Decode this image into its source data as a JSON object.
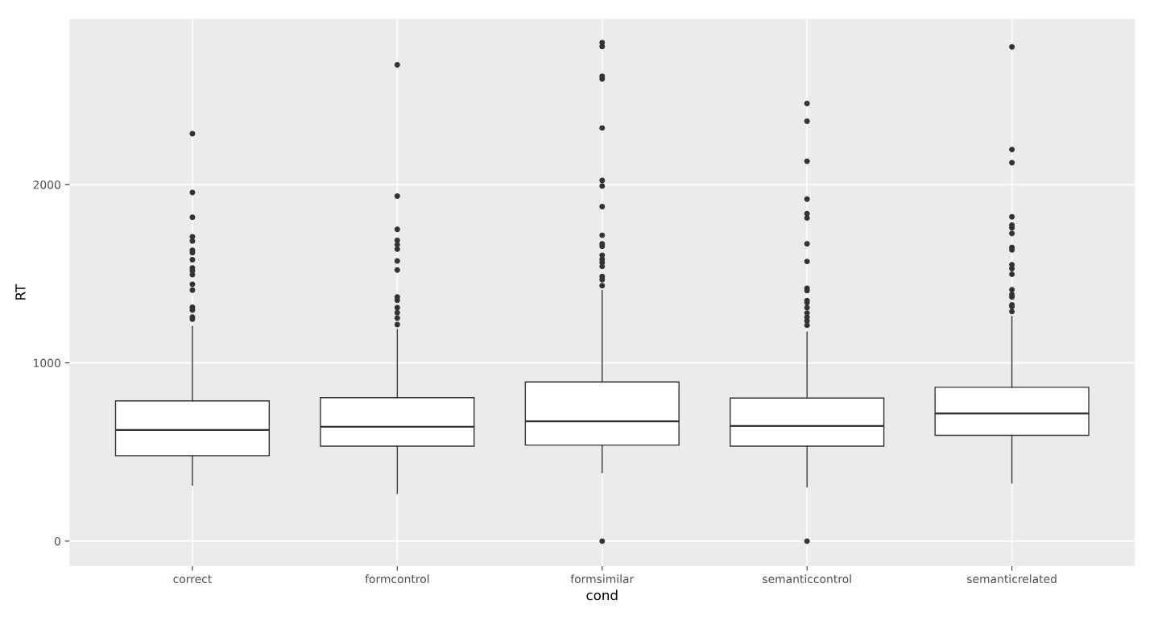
{
  "chart_data": {
    "type": "box",
    "xlabel": "cond",
    "ylabel": "RT",
    "categories": [
      "correct",
      "formcontrol",
      "formsimilar",
      "semanticcontrol",
      "semanticrelated"
    ],
    "boxes": [
      {
        "low": 314,
        "q1": 479,
        "median": 624,
        "q3": 787,
        "high": 1205,
        "outliers": [
          2286,
          1956,
          1817,
          1708,
          1684,
          1632,
          1618,
          1579,
          1533,
          1517,
          1495,
          1441,
          1408,
          1312,
          1296,
          1257,
          1245
        ]
      },
      {
        "low": 267,
        "q1": 533,
        "median": 642,
        "q3": 805,
        "high": 1188,
        "outliers": [
          2672,
          1936,
          1749,
          1687,
          1663,
          1638,
          1572,
          1521,
          1370,
          1352,
          1310,
          1282,
          1251,
          1215
        ]
      },
      {
        "low": 384,
        "q1": 539,
        "median": 672,
        "q3": 893,
        "high": 1406,
        "outliers": [
          2797,
          2775,
          2608,
          2593,
          2318,
          2024,
          1992,
          1877,
          1716,
          1668,
          1654,
          1604,
          1581,
          1563,
          1541,
          1485,
          1467,
          1433,
          0
        ]
      },
      {
        "low": 304,
        "q1": 533,
        "median": 646,
        "q3": 803,
        "high": 1173,
        "outliers": [
          2455,
          2356,
          2131,
          1919,
          1837,
          1813,
          1668,
          1569,
          1418,
          1406,
          1350,
          1338,
          1310,
          1280,
          1256,
          1235,
          1211,
          0
        ]
      },
      {
        "low": 326,
        "q1": 594,
        "median": 716,
        "q3": 863,
        "high": 1260,
        "outliers": [
          2773,
          2197,
          2123,
          1819,
          1773,
          1757,
          1726,
          1648,
          1634,
          1551,
          1529,
          1497,
          1410,
          1384,
          1370,
          1326,
          1316,
          1288
        ]
      }
    ],
    "ylim": [
      -140,
      2930
    ],
    "yticks": [
      0,
      1000,
      2000
    ],
    "grid": true
  }
}
